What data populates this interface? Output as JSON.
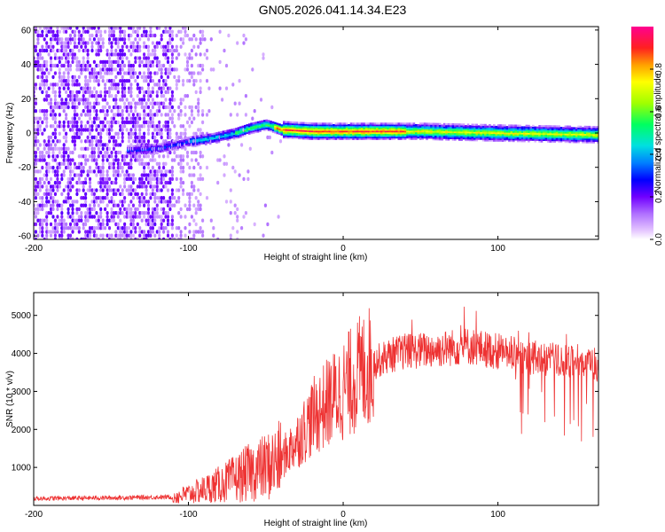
{
  "title": "GN05.2026.041.14.34.E23",
  "chart_data": [
    {
      "type": "heatmap",
      "name": "spectrogram",
      "xlabel": "Height of straight line (km)",
      "ylabel": "Frequency (Hz)",
      "xlim": [
        -200,
        165
      ],
      "ylim": [
        -62,
        62
      ],
      "xticks": [
        -200,
        -100,
        0,
        100
      ],
      "yticks": [
        60,
        40,
        20,
        0,
        -20,
        -40,
        -60
      ],
      "center_track": [
        {
          "x": -135,
          "y": -10
        },
        {
          "x": -120,
          "y": -9
        },
        {
          "x": -110,
          "y": -7
        },
        {
          "x": -100,
          "y": -5
        },
        {
          "x": -85,
          "y": -3
        },
        {
          "x": -70,
          "y": 0
        },
        {
          "x": -60,
          "y": 3
        },
        {
          "x": -50,
          "y": 5
        },
        {
          "x": -40,
          "y": 2
        },
        {
          "x": -20,
          "y": 1
        },
        {
          "x": 0,
          "y": 1
        },
        {
          "x": 50,
          "y": 1
        },
        {
          "x": 100,
          "y": 0
        },
        {
          "x": 165,
          "y": -1
        }
      ],
      "colorbar": {
        "label": "Normalized spectral amplitude",
        "range": [
          0,
          1
        ],
        "ticks": [
          0.0,
          0.2,
          0.4,
          0.6,
          0.8
        ],
        "tick_labels": [
          "0.0",
          "0.2",
          "0.4",
          "0.6",
          "0.8"
        ]
      }
    },
    {
      "type": "line",
      "name": "snr",
      "xlabel": "Height of straight line (km)",
      "ylabel": "SNR (10 * v/v)",
      "xlim": [
        -200,
        165
      ],
      "ylim": [
        0,
        5600
      ],
      "xticks": [
        -200,
        -100,
        0,
        100
      ],
      "yticks": [
        1000,
        2000,
        3000,
        4000,
        5000
      ],
      "series": [
        {
          "name": "SNR",
          "color": "#ee3333",
          "trend": [
            {
              "x": -200,
              "y": 180
            },
            {
              "x": -150,
              "y": 200
            },
            {
              "x": -110,
              "y": 220
            },
            {
              "x": -100,
              "y": 300
            },
            {
              "x": -90,
              "y": 420
            },
            {
              "x": -80,
              "y": 550
            },
            {
              "x": -70,
              "y": 700
            },
            {
              "x": -60,
              "y": 880
            },
            {
              "x": -50,
              "y": 1000
            },
            {
              "x": -40,
              "y": 1200
            },
            {
              "x": -30,
              "y": 1700
            },
            {
              "x": -20,
              "y": 2300
            },
            {
              "x": -10,
              "y": 2700
            },
            {
              "x": 0,
              "y": 3050
            },
            {
              "x": 10,
              "y": 3450
            },
            {
              "x": 20,
              "y": 3750
            },
            {
              "x": 30,
              "y": 3950
            },
            {
              "x": 40,
              "y": 4050
            },
            {
              "x": 60,
              "y": 4100
            },
            {
              "x": 80,
              "y": 4200
            },
            {
              "x": 100,
              "y": 4050
            },
            {
              "x": 120,
              "y": 3900
            },
            {
              "x": 140,
              "y": 3800
            },
            {
              "x": 165,
              "y": 3700
            }
          ]
        }
      ]
    }
  ]
}
